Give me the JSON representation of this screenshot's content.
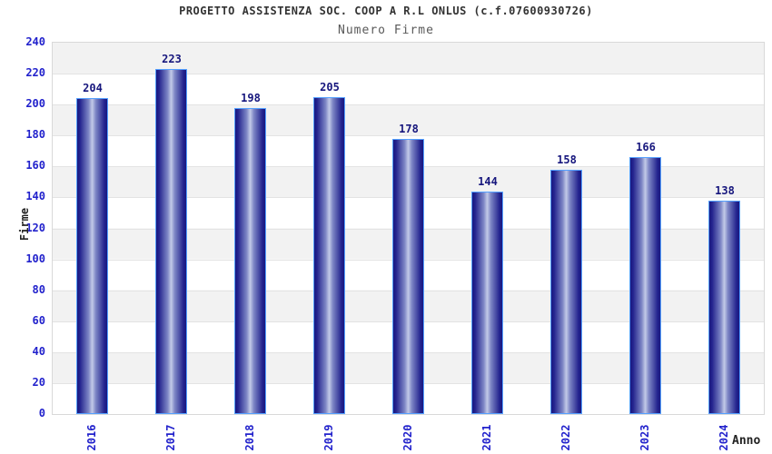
{
  "chart_data": {
    "type": "bar",
    "title": "PROGETTO ASSISTENZA SOC. COOP A R.L ONLUS (c.f.07600930726)",
    "subtitle": "Numero Firme",
    "xlabel": "Anno",
    "ylabel": "Firme",
    "categories": [
      "2016",
      "2017",
      "2018",
      "2019",
      "2020",
      "2021",
      "2022",
      "2023",
      "2024"
    ],
    "values": [
      204,
      223,
      198,
      205,
      178,
      144,
      158,
      166,
      138
    ],
    "ylim": [
      0,
      240
    ],
    "ytick_step": 20,
    "legend": "none",
    "grid": "horizontal-bands",
    "colors": {
      "tick_label": "#2222cc",
      "value_label": "#16167d",
      "bar_edge_dark": "#181880",
      "bar_mid": "#7d86c5",
      "bar_highlight": "#c3cae8",
      "bar_border": "#55a0ff",
      "band_gray": "#f2f2f2",
      "band_white": "#ffffff",
      "plot_border": "#d9d9d9",
      "gridline": "#e3e3e3",
      "title_color": "#333333",
      "subtitle_color": "#595959",
      "axis_label_color": "#222222"
    }
  }
}
